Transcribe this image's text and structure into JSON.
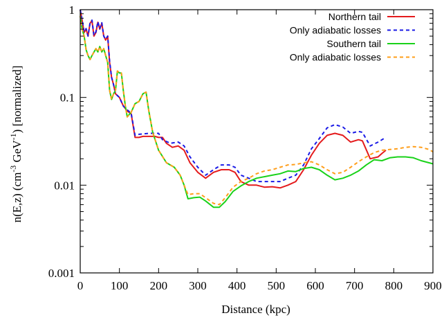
{
  "chart_data": {
    "type": "line",
    "xlabel": "Distance (kpc)",
    "ylabel": "n(E,z) (cm⁻³ GeV⁻¹) [normalized]",
    "ylabel_parts": {
      "pre": "n(E,z) (cm",
      "sup1": "-3",
      "mid": " GeV",
      "sup2": "-1",
      "post": ") [normalized]"
    },
    "x_range": [
      0,
      900
    ],
    "y_range": [
      0.001,
      1
    ],
    "y_scale": "log",
    "x_ticks": [
      "0",
      "100",
      "200",
      "300",
      "400",
      "500",
      "600",
      "700",
      "800",
      "900"
    ],
    "y_ticks": [
      "1",
      "0.1",
      "0.01",
      "0.001"
    ],
    "grid": false,
    "legend_position": "top-right",
    "series": [
      {
        "name": "Northern tail",
        "color": "#e41a1c",
        "dash": "solid",
        "points": [
          [
            0,
            1.0
          ],
          [
            5,
            0.75
          ],
          [
            10,
            0.55
          ],
          [
            15,
            0.6
          ],
          [
            20,
            0.5
          ],
          [
            25,
            0.7
          ],
          [
            30,
            0.75
          ],
          [
            35,
            0.5
          ],
          [
            40,
            0.55
          ],
          [
            45,
            0.72
          ],
          [
            50,
            0.6
          ],
          [
            55,
            0.7
          ],
          [
            60,
            0.5
          ],
          [
            65,
            0.45
          ],
          [
            70,
            0.5
          ],
          [
            75,
            0.25
          ],
          [
            80,
            0.17
          ],
          [
            85,
            0.14
          ],
          [
            90,
            0.11
          ],
          [
            100,
            0.1
          ],
          [
            110,
            0.08
          ],
          [
            120,
            0.07
          ],
          [
            130,
            0.065
          ],
          [
            140,
            0.035
          ],
          [
            150,
            0.035
          ],
          [
            160,
            0.036
          ],
          [
            175,
            0.036
          ],
          [
            190,
            0.036
          ],
          [
            200,
            0.035
          ],
          [
            210,
            0.035
          ],
          [
            220,
            0.03
          ],
          [
            235,
            0.027
          ],
          [
            250,
            0.028
          ],
          [
            265,
            0.025
          ],
          [
            280,
            0.018
          ],
          [
            300,
            0.014
          ],
          [
            320,
            0.012
          ],
          [
            340,
            0.014
          ],
          [
            360,
            0.015
          ],
          [
            380,
            0.015
          ],
          [
            395,
            0.014
          ],
          [
            410,
            0.011
          ],
          [
            430,
            0.01
          ],
          [
            450,
            0.01
          ],
          [
            470,
            0.0095
          ],
          [
            490,
            0.0096
          ],
          [
            510,
            0.0093
          ],
          [
            530,
            0.01
          ],
          [
            550,
            0.011
          ],
          [
            570,
            0.015
          ],
          [
            590,
            0.022
          ],
          [
            610,
            0.03
          ],
          [
            630,
            0.037
          ],
          [
            650,
            0.039
          ],
          [
            670,
            0.037
          ],
          [
            690,
            0.031
          ],
          [
            710,
            0.033
          ],
          [
            720,
            0.032
          ],
          [
            740,
            0.02
          ],
          [
            760,
            0.021
          ],
          [
            770,
            0.023
          ],
          [
            780,
            0.025
          ]
        ]
      },
      {
        "name": "Only adiabatic losses",
        "color": "#1a1ae6",
        "dash": "dashed",
        "points": [
          [
            0,
            1.0
          ],
          [
            5,
            0.76
          ],
          [
            10,
            0.56
          ],
          [
            15,
            0.61
          ],
          [
            20,
            0.5
          ],
          [
            25,
            0.71
          ],
          [
            30,
            0.76
          ],
          [
            35,
            0.51
          ],
          [
            40,
            0.56
          ],
          [
            45,
            0.73
          ],
          [
            50,
            0.61
          ],
          [
            55,
            0.71
          ],
          [
            60,
            0.5
          ],
          [
            65,
            0.46
          ],
          [
            70,
            0.5
          ],
          [
            75,
            0.26
          ],
          [
            80,
            0.17
          ],
          [
            85,
            0.14
          ],
          [
            90,
            0.11
          ],
          [
            100,
            0.1
          ],
          [
            110,
            0.08
          ],
          [
            120,
            0.072
          ],
          [
            130,
            0.066
          ],
          [
            140,
            0.037
          ],
          [
            150,
            0.038
          ],
          [
            175,
            0.039
          ],
          [
            200,
            0.039
          ],
          [
            210,
            0.033
          ],
          [
            230,
            0.03
          ],
          [
            250,
            0.031
          ],
          [
            265,
            0.028
          ],
          [
            280,
            0.021
          ],
          [
            300,
            0.016
          ],
          [
            320,
            0.013
          ],
          [
            340,
            0.015
          ],
          [
            360,
            0.017
          ],
          [
            380,
            0.017
          ],
          [
            395,
            0.016
          ],
          [
            410,
            0.013
          ],
          [
            430,
            0.012
          ],
          [
            450,
            0.011
          ],
          [
            470,
            0.011
          ],
          [
            490,
            0.011
          ],
          [
            510,
            0.011
          ],
          [
            530,
            0.012
          ],
          [
            550,
            0.013
          ],
          [
            570,
            0.017
          ],
          [
            590,
            0.026
          ],
          [
            610,
            0.034
          ],
          [
            630,
            0.045
          ],
          [
            650,
            0.049
          ],
          [
            670,
            0.046
          ],
          [
            690,
            0.039
          ],
          [
            710,
            0.041
          ],
          [
            720,
            0.04
          ],
          [
            740,
            0.028
          ],
          [
            760,
            0.031
          ],
          [
            770,
            0.033
          ],
          [
            780,
            0.035
          ]
        ]
      },
      {
        "name": "Southern tail",
        "color": "#19d219",
        "dash": "solid",
        "points": [
          [
            0,
            0.85
          ],
          [
            5,
            0.6
          ],
          [
            10,
            0.5
          ],
          [
            15,
            0.35
          ],
          [
            20,
            0.3
          ],
          [
            25,
            0.27
          ],
          [
            30,
            0.3
          ],
          [
            40,
            0.36
          ],
          [
            45,
            0.33
          ],
          [
            50,
            0.38
          ],
          [
            55,
            0.33
          ],
          [
            60,
            0.36
          ],
          [
            65,
            0.3
          ],
          [
            70,
            0.25
          ],
          [
            75,
            0.12
          ],
          [
            80,
            0.095
          ],
          [
            85,
            0.11
          ],
          [
            90,
            0.12
          ],
          [
            95,
            0.2
          ],
          [
            100,
            0.19
          ],
          [
            105,
            0.19
          ],
          [
            110,
            0.12
          ],
          [
            115,
            0.08
          ],
          [
            120,
            0.06
          ],
          [
            130,
            0.068
          ],
          [
            140,
            0.085
          ],
          [
            150,
            0.09
          ],
          [
            160,
            0.11
          ],
          [
            168,
            0.115
          ],
          [
            175,
            0.07
          ],
          [
            185,
            0.04
          ],
          [
            200,
            0.025
          ],
          [
            220,
            0.018
          ],
          [
            240,
            0.016
          ],
          [
            255,
            0.013
          ],
          [
            265,
            0.01
          ],
          [
            275,
            0.007
          ],
          [
            290,
            0.0072
          ],
          [
            305,
            0.0073
          ],
          [
            320,
            0.0066
          ],
          [
            340,
            0.0056
          ],
          [
            355,
            0.0056
          ],
          [
            370,
            0.0065
          ],
          [
            390,
            0.0085
          ],
          [
            410,
            0.0098
          ],
          [
            430,
            0.011
          ],
          [
            450,
            0.012
          ],
          [
            470,
            0.0125
          ],
          [
            490,
            0.013
          ],
          [
            510,
            0.0135
          ],
          [
            530,
            0.0145
          ],
          [
            550,
            0.0143
          ],
          [
            570,
            0.0155
          ],
          [
            590,
            0.016
          ],
          [
            610,
            0.015
          ],
          [
            630,
            0.013
          ],
          [
            650,
            0.0115
          ],
          [
            670,
            0.012
          ],
          [
            690,
            0.013
          ],
          [
            710,
            0.0145
          ],
          [
            730,
            0.017
          ],
          [
            750,
            0.0195
          ],
          [
            770,
            0.019
          ],
          [
            790,
            0.0205
          ],
          [
            810,
            0.021
          ],
          [
            830,
            0.021
          ],
          [
            850,
            0.0205
          ],
          [
            870,
            0.019
          ],
          [
            890,
            0.018
          ],
          [
            900,
            0.0175
          ]
        ]
      },
      {
        "name": "Only adiabatic losses",
        "color": "#ff9e1a",
        "dash": "dashed",
        "points": [
          [
            0,
            0.85
          ],
          [
            5,
            0.6
          ],
          [
            10,
            0.5
          ],
          [
            15,
            0.35
          ],
          [
            20,
            0.3
          ],
          [
            25,
            0.27
          ],
          [
            30,
            0.3
          ],
          [
            40,
            0.36
          ],
          [
            45,
            0.33
          ],
          [
            50,
            0.38
          ],
          [
            55,
            0.33
          ],
          [
            60,
            0.36
          ],
          [
            65,
            0.3
          ],
          [
            70,
            0.25
          ],
          [
            75,
            0.12
          ],
          [
            80,
            0.095
          ],
          [
            85,
            0.11
          ],
          [
            90,
            0.12
          ],
          [
            95,
            0.2
          ],
          [
            100,
            0.19
          ],
          [
            105,
            0.19
          ],
          [
            110,
            0.12
          ],
          [
            115,
            0.08
          ],
          [
            120,
            0.06
          ],
          [
            130,
            0.068
          ],
          [
            140,
            0.085
          ],
          [
            150,
            0.09
          ],
          [
            160,
            0.11
          ],
          [
            168,
            0.115
          ],
          [
            175,
            0.07
          ],
          [
            185,
            0.04
          ],
          [
            200,
            0.025
          ],
          [
            220,
            0.018
          ],
          [
            240,
            0.016
          ],
          [
            255,
            0.013
          ],
          [
            265,
            0.01
          ],
          [
            275,
            0.0078
          ],
          [
            290,
            0.008
          ],
          [
            305,
            0.008
          ],
          [
            320,
            0.0072
          ],
          [
            340,
            0.0062
          ],
          [
            355,
            0.006
          ],
          [
            370,
            0.0072
          ],
          [
            390,
            0.0095
          ],
          [
            410,
            0.011
          ],
          [
            430,
            0.012
          ],
          [
            450,
            0.0135
          ],
          [
            470,
            0.0145
          ],
          [
            490,
            0.015
          ],
          [
            510,
            0.016
          ],
          [
            530,
            0.017
          ],
          [
            550,
            0.0172
          ],
          [
            570,
            0.018
          ],
          [
            590,
            0.0185
          ],
          [
            610,
            0.017
          ],
          [
            630,
            0.015
          ],
          [
            650,
            0.0135
          ],
          [
            670,
            0.014
          ],
          [
            690,
            0.016
          ],
          [
            710,
            0.0185
          ],
          [
            730,
            0.021
          ],
          [
            750,
            0.0235
          ],
          [
            770,
            0.025
          ],
          [
            790,
            0.0255
          ],
          [
            810,
            0.026
          ],
          [
            830,
            0.027
          ],
          [
            850,
            0.0275
          ],
          [
            870,
            0.027
          ],
          [
            890,
            0.0255
          ],
          [
            900,
            0.024
          ]
        ]
      }
    ]
  }
}
